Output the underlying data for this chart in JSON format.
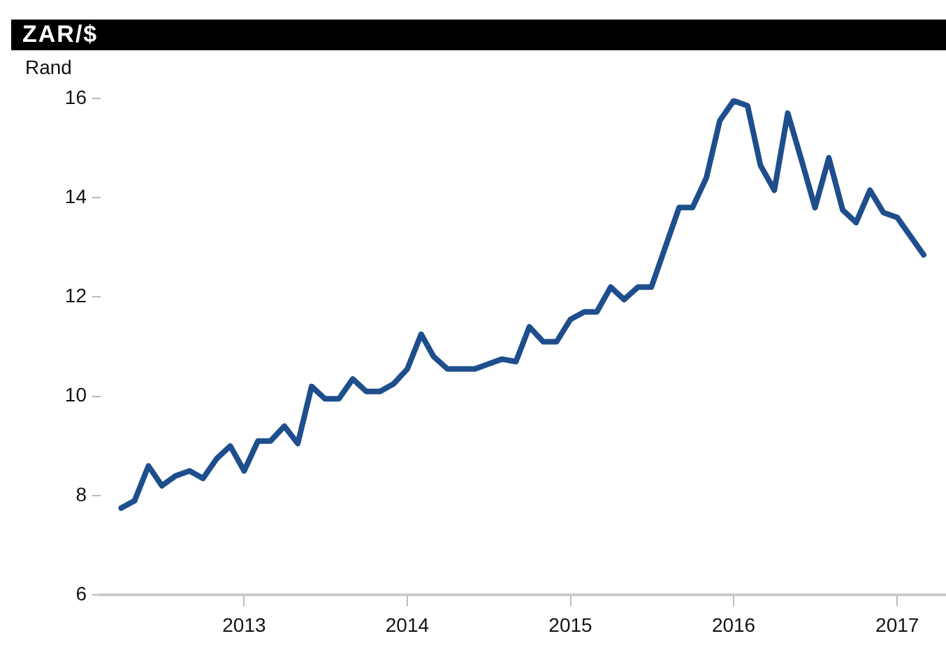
{
  "chart_data": {
    "type": "line",
    "title": "ZAR/$",
    "ylabel": "Rand",
    "x": [
      "2012-04",
      "2012-05",
      "2012-06",
      "2012-07",
      "2012-08",
      "2012-09",
      "2012-10",
      "2012-11",
      "2012-12",
      "2013-01",
      "2013-02",
      "2013-03",
      "2013-04",
      "2013-05",
      "2013-06",
      "2013-07",
      "2013-08",
      "2013-09",
      "2013-10",
      "2013-11",
      "2013-12",
      "2014-01",
      "2014-02",
      "2014-03",
      "2014-04",
      "2014-06",
      "2014-07",
      "2014-08",
      "2014-09",
      "2014-10",
      "2014-11",
      "2014-12",
      "2015-01",
      "2015-02",
      "2015-03",
      "2015-04",
      "2015-05",
      "2015-06",
      "2015-07",
      "2015-09",
      "2015-10",
      "2015-11",
      "2015-12",
      "2016-01",
      "2016-02",
      "2016-03",
      "2016-04",
      "2016-05",
      "2016-06",
      "2016-07",
      "2016-08",
      "2016-09",
      "2016-10",
      "2016-11",
      "2016-12",
      "2017-01",
      "2017-03"
    ],
    "series": [
      {
        "color": "#1f4e8c",
        "values": [
          7.75,
          7.9,
          8.6,
          8.2,
          8.4,
          8.5,
          8.35,
          8.75,
          9.0,
          8.5,
          9.1,
          9.1,
          9.4,
          9.05,
          10.2,
          9.95,
          9.95,
          10.35,
          10.1,
          10.1,
          10.25,
          10.55,
          11.25,
          10.8,
          10.55,
          10.55,
          10.65,
          10.75,
          10.7,
          11.4,
          11.1,
          11.1,
          11.55,
          11.7,
          11.7,
          12.2,
          11.95,
          12.2,
          12.2,
          13.8,
          13.8,
          14.4,
          15.55,
          15.95,
          15.85,
          14.65,
          14.15,
          15.7,
          14.75,
          13.8,
          14.8,
          13.75,
          13.5,
          14.15,
          13.7,
          13.6,
          12.85
        ]
      }
    ],
    "xlim": [
      "2012-02-15",
      "2017-04-20"
    ],
    "xticks": [
      "2013",
      "2014",
      "2015",
      "2016",
      "2017"
    ],
    "ylim": [
      6,
      16
    ],
    "yticks": [
      6,
      8,
      10,
      12,
      14,
      16
    ],
    "grid": false,
    "legend": false,
    "marker": "none",
    "line_style": "solid"
  }
}
